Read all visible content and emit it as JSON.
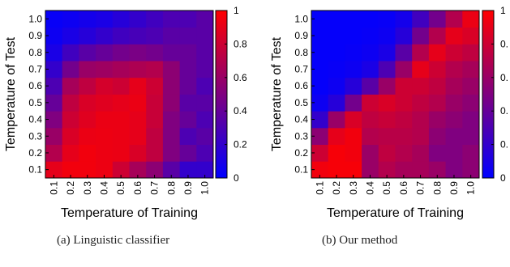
{
  "figure": {
    "captions": [
      "(a)  Linguistic classifier",
      "(b)  Our method"
    ],
    "colorbar": {
      "ticks": [
        0,
        0.2,
        0.4,
        0.6,
        0.8,
        1
      ],
      "tick_labels_a": [
        "0",
        "0.2",
        "0.4",
        "0.6",
        "0.8",
        "1"
      ],
      "tick_labels_b": [
        "0",
        "0.",
        "0.",
        "0.",
        "0.",
        "1"
      ],
      "colormap": [
        "#0000ff",
        "#ff0000"
      ]
    }
  },
  "chart_data": [
    {
      "type": "heatmap",
      "title": "",
      "xlabel": "Temperature of Training",
      "ylabel": "Temperature of Test",
      "x": [
        "0.1",
        "0.2",
        "0.3",
        "0.4",
        "0.5",
        "0.6",
        "0.7",
        "0.8",
        "0.9",
        "1.0"
      ],
      "y": [
        "0.1",
        "0.2",
        "0.3",
        "0.4",
        "0.5",
        "0.6",
        "0.7",
        "0.8",
        "0.9",
        "1.0"
      ],
      "clim": [
        0,
        1
      ],
      "values_rows_test_temp_ascending": [
        [
          0.9,
          0.95,
          0.95,
          0.93,
          0.8,
          0.65,
          0.55,
          0.35,
          0.2,
          0.2
        ],
        [
          0.7,
          0.9,
          0.95,
          0.93,
          0.92,
          0.85,
          0.75,
          0.5,
          0.4,
          0.3
        ],
        [
          0.6,
          0.85,
          0.92,
          0.93,
          0.92,
          0.9,
          0.75,
          0.5,
          0.3,
          0.35
        ],
        [
          0.5,
          0.8,
          0.88,
          0.92,
          0.92,
          0.9,
          0.78,
          0.5,
          0.4,
          0.3
        ],
        [
          0.4,
          0.75,
          0.85,
          0.88,
          0.9,
          0.92,
          0.78,
          0.55,
          0.35,
          0.35
        ],
        [
          0.3,
          0.65,
          0.75,
          0.83,
          0.8,
          0.9,
          0.8,
          0.55,
          0.4,
          0.3
        ],
        [
          0.2,
          0.45,
          0.6,
          0.62,
          0.65,
          0.68,
          0.7,
          0.55,
          0.4,
          0.35
        ],
        [
          0.1,
          0.25,
          0.35,
          0.4,
          0.45,
          0.48,
          0.45,
          0.4,
          0.4,
          0.35
        ],
        [
          0.05,
          0.1,
          0.15,
          0.2,
          0.25,
          0.28,
          0.3,
          0.35,
          0.35,
          0.35
        ],
        [
          0.03,
          0.05,
          0.08,
          0.1,
          0.15,
          0.2,
          0.25,
          0.3,
          0.3,
          0.35
        ]
      ]
    },
    {
      "type": "heatmap",
      "title": "",
      "xlabel": "Temperature of Training",
      "ylabel": "Temperature of Test",
      "x": [
        "0.1",
        "0.2",
        "0.3",
        "0.4",
        "0.5",
        "0.6",
        "0.7",
        "0.8",
        "0.9",
        "1.0"
      ],
      "y": [
        "0.1",
        "0.2",
        "0.3",
        "0.4",
        "0.5",
        "0.6",
        "0.7",
        "0.8",
        "0.9",
        "1.0"
      ],
      "clim": [
        0,
        1
      ],
      "values_rows_test_temp_ascending": [
        [
          0.95,
          0.97,
          0.97,
          0.6,
          0.7,
          0.65,
          0.65,
          0.6,
          0.5,
          0.55
        ],
        [
          0.8,
          0.97,
          0.95,
          0.6,
          0.75,
          0.7,
          0.65,
          0.5,
          0.5,
          0.55
        ],
        [
          0.55,
          0.9,
          0.95,
          0.7,
          0.72,
          0.72,
          0.7,
          0.55,
          0.5,
          0.5
        ],
        [
          0.2,
          0.6,
          0.85,
          0.75,
          0.78,
          0.75,
          0.7,
          0.6,
          0.55,
          0.5
        ],
        [
          0.05,
          0.15,
          0.45,
          0.8,
          0.85,
          0.8,
          0.75,
          0.7,
          0.6,
          0.55
        ],
        [
          0.02,
          0.05,
          0.15,
          0.35,
          0.6,
          0.8,
          0.8,
          0.75,
          0.65,
          0.6
        ],
        [
          0.02,
          0.03,
          0.05,
          0.1,
          0.3,
          0.6,
          0.9,
          0.8,
          0.7,
          0.65
        ],
        [
          0.02,
          0.02,
          0.03,
          0.05,
          0.1,
          0.35,
          0.7,
          0.9,
          0.8,
          0.75
        ],
        [
          0.02,
          0.02,
          0.02,
          0.03,
          0.05,
          0.15,
          0.45,
          0.7,
          0.9,
          0.85
        ],
        [
          0.02,
          0.02,
          0.02,
          0.02,
          0.03,
          0.08,
          0.25,
          0.45,
          0.7,
          0.92
        ]
      ]
    }
  ]
}
